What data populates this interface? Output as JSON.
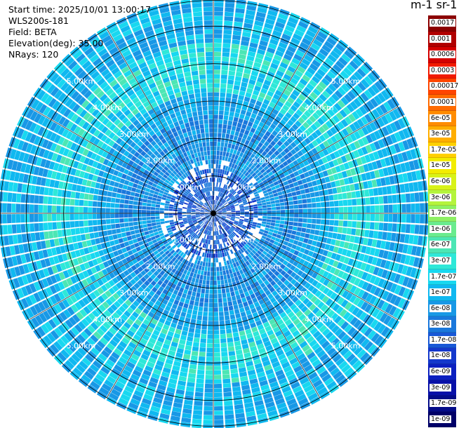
{
  "header": {
    "start_time": "Start time: 2025/10/01 13:00:17",
    "instrument": "WLS200s-181",
    "field": "Field: BETA",
    "elevation": "Elevation(deg): 35.00",
    "nrays": "NRays: 120"
  },
  "colorbar": {
    "unit_title": "m-1 sr-1",
    "labels": [
      "0.0017",
      "0.001",
      "0.0006",
      "0.0003",
      "0.00017",
      "0.0001",
      "6e-05",
      "3e-05",
      "1.7e-05",
      "1e-05",
      "6e-06",
      "3e-06",
      "1.7e-06",
      "1e-06",
      "6e-07",
      "3e-07",
      "1.7e-07",
      "1e-07",
      "6e-08",
      "3e-08",
      "1.7e-08",
      "1e-08",
      "6e-09",
      "3e-09",
      "1.7e-09",
      "1e-09"
    ],
    "colors": [
      "#8b0000",
      "#b00000",
      "#d40000",
      "#f21a00",
      "#ff4500",
      "#ff6a00",
      "#ff8c00",
      "#ffae00",
      "#ffd000",
      "#f2ec00",
      "#d8f218",
      "#b4f43c",
      "#8ef064",
      "#6aeb8e",
      "#4ce6b4",
      "#2ee8d8",
      "#18d8f0",
      "#10b8f0",
      "#1898e6",
      "#1a78dc",
      "#1858d6",
      "#1438cc",
      "#0c20c0",
      "#0810a8",
      "#040c88",
      "#000068"
    ]
  },
  "chart_data": {
    "type": "heatmap",
    "projection": "polar (PPI scan)",
    "field": "BETA",
    "elevation_deg": 35.0,
    "n_rays": 120,
    "range_ring_labels": [
      "1.00km",
      "2.00km",
      "3.00km",
      "4.00km",
      "5.00km"
    ],
    "range_rings_km": [
      1,
      2,
      3,
      4,
      5
    ],
    "max_range_km": 5.7,
    "colormap_levels": [
      "1e-09",
      "1.7e-09",
      "3e-09",
      "6e-09",
      "1e-08",
      "1.7e-08",
      "3e-08",
      "6e-08",
      "1e-07",
      "1.7e-07",
      "3e-07",
      "6e-07",
      "1e-06",
      "1.7e-06",
      "3e-06",
      "6e-06",
      "1e-05",
      "1.7e-05",
      "3e-05",
      "6e-05",
      "0.0001",
      "0.00017",
      "0.0003",
      "0.0006",
      "0.001",
      "0.0017"
    ],
    "dominant_range": [
      "3e-08",
      "1.7e-07"
    ],
    "features": [
      "Near-field (< 1 km): values mostly 6e-09 to 3e-08 (dark blue)",
      "Annulus at about 3.3-4.5 km: enhanced values 1e-07 to 3e-07 (cyan/green)",
      "Outer region to about 5.7 km: values 3e-08 to 1e-07 (medium blue)"
    ],
    "grid": true
  }
}
